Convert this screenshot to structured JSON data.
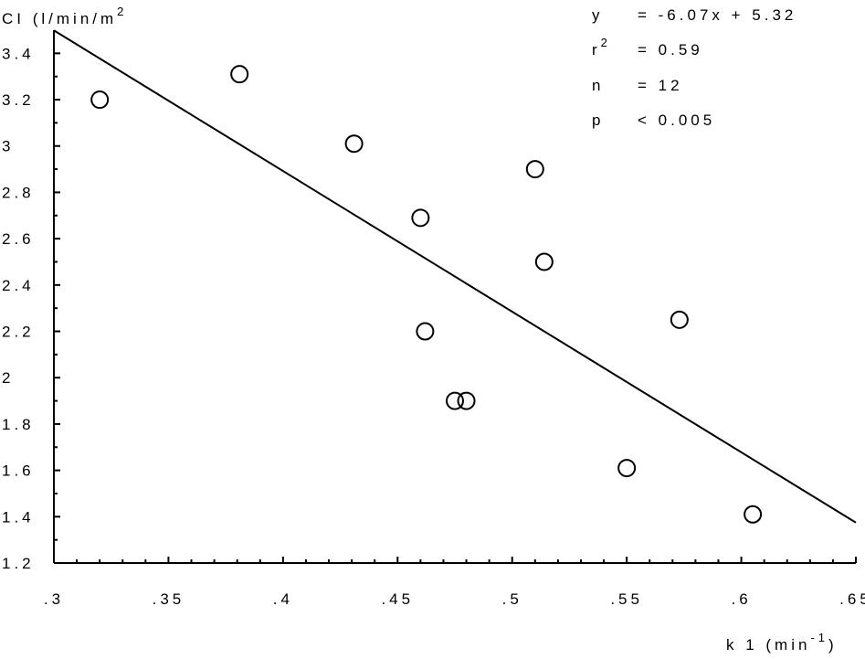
{
  "chart_data": {
    "type": "scatter",
    "title": "",
    "ylabel_main": "CI  (l/min/m",
    "ylabel_sup": "2",
    "xlabel_main": "k 1  (min",
    "xlabel_sup": "-1",
    "xlabel_close": ")",
    "xlim": [
      0.3,
      0.65
    ],
    "ylim": [
      1.2,
      3.5
    ],
    "x_ticks": [
      0.3,
      0.35,
      0.4,
      0.45,
      0.5,
      0.55,
      0.6,
      0.65
    ],
    "x_tick_labels": [
      ".3",
      ".35",
      ".4",
      ".45",
      ".5",
      ".55",
      ".6",
      ".65"
    ],
    "y_ticks": [
      1.2,
      1.4,
      1.6,
      1.8,
      2.0,
      2.2,
      2.4,
      2.6,
      2.8,
      3.0,
      3.2,
      3.4
    ],
    "y_tick_labels": [
      "1.2",
      "1.4",
      "1.6",
      "1.8",
      "2",
      "2.2",
      "2.4",
      "2.6",
      "2.8",
      "3",
      "3.2",
      "3.4"
    ],
    "points": [
      {
        "x": 0.32,
        "y": 3.2
      },
      {
        "x": 0.381,
        "y": 3.31
      },
      {
        "x": 0.431,
        "y": 3.01
      },
      {
        "x": 0.46,
        "y": 2.69
      },
      {
        "x": 0.462,
        "y": 2.2
      },
      {
        "x": 0.475,
        "y": 1.9
      },
      {
        "x": 0.48,
        "y": 1.9
      },
      {
        "x": 0.51,
        "y": 2.9
      },
      {
        "x": 0.514,
        "y": 2.5
      },
      {
        "x": 0.55,
        "y": 1.61
      },
      {
        "x": 0.573,
        "y": 2.25
      },
      {
        "x": 0.605,
        "y": 1.41
      }
    ],
    "fit_line": {
      "slope": -6.07,
      "intercept": 5.32
    },
    "grid": false,
    "stats": [
      {
        "label": "y",
        "value": "=  -6.07x  +  5.32"
      },
      {
        "label": "r",
        "label_sup": "2",
        "value": "=  0.59"
      },
      {
        "label": "n",
        "value": "=  12"
      },
      {
        "label": "p",
        "value": "<  0.005"
      }
    ]
  }
}
